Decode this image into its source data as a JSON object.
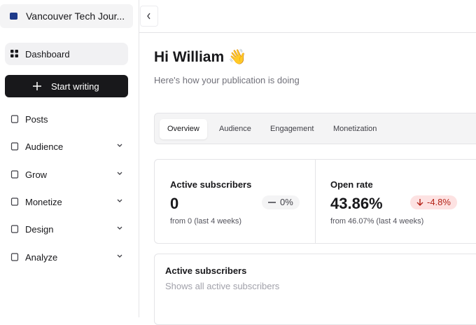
{
  "sidebar": {
    "workspace": "Vancouver Tech Jour...",
    "nav": [
      "Dashboard",
      "Start writing",
      "Posts",
      "Audience",
      "Grow",
      "Monetize",
      "Design",
      "Analyze"
    ]
  },
  "header": {
    "title": "Hi William 👋",
    "subtitle": "Here's how your publication is doing"
  },
  "tabs": [
    "Overview",
    "Audience",
    "Engagement",
    "Monetization"
  ],
  "stats": [
    {
      "label": "Active subscribers",
      "value": "0",
      "change": "0%",
      "footnote": "from 0 (last 4 weeks)"
    },
    {
      "label": "Open rate",
      "value": "43.86%",
      "change": "-4.8%",
      "footnote": "from 46.07% (last 4 weeks)"
    }
  ],
  "panel": {
    "title": "Active subscribers",
    "subtitle": "Shows all active subscribers"
  }
}
